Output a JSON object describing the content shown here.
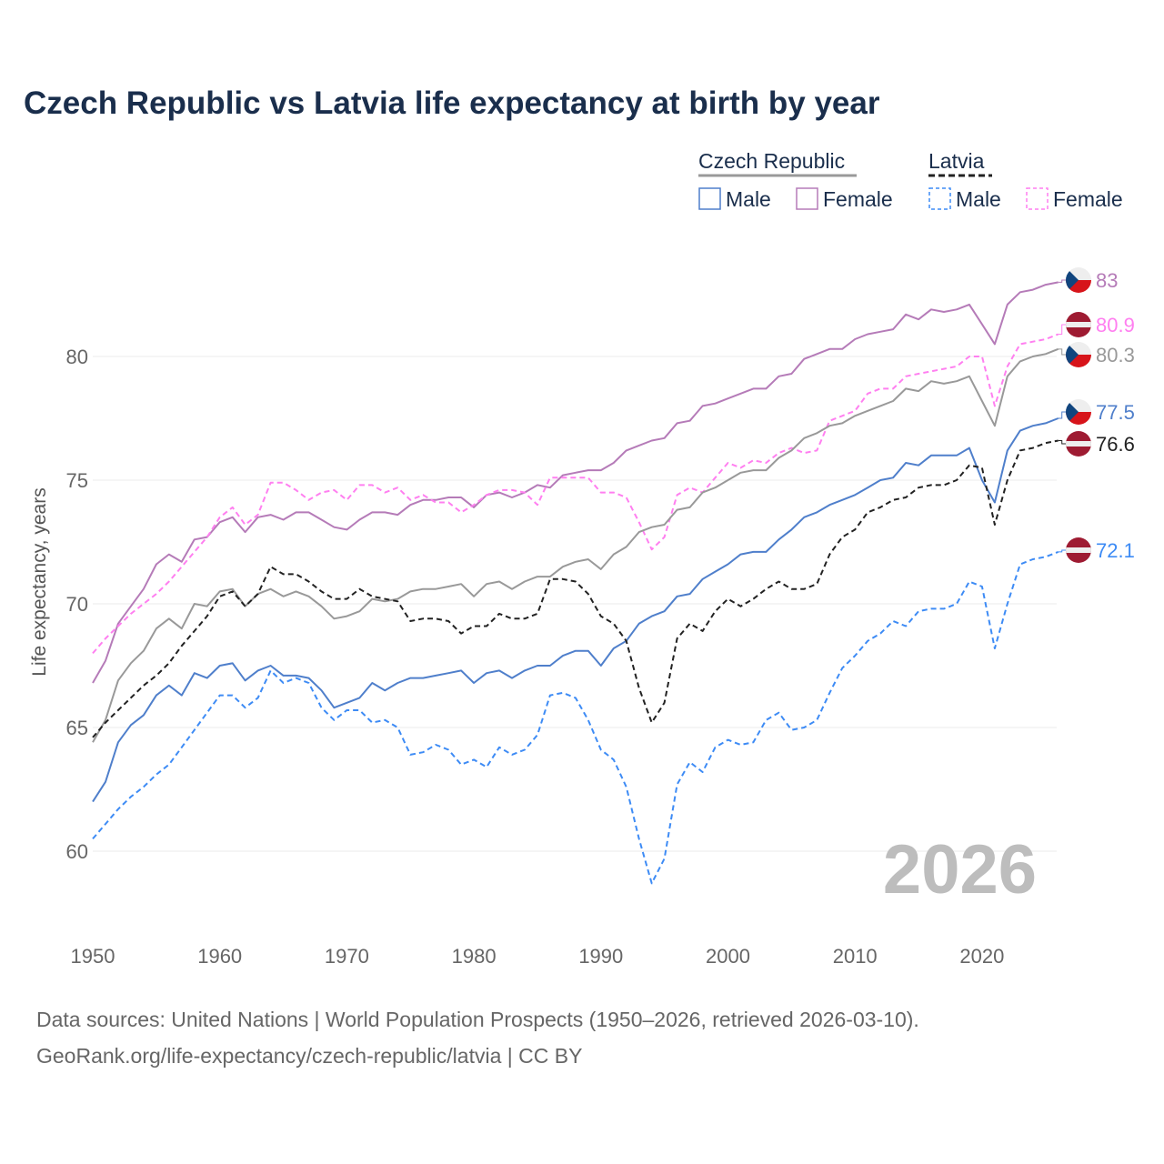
{
  "title": "Czech Republic vs Latvia life expectancy at birth by year",
  "watermark_year": "2026",
  "legend": {
    "groups": [
      {
        "label": "Czech Republic",
        "style": "solid",
        "underline_color": "#999999",
        "items": [
          {
            "label": "Male",
            "color": "#4f7fcb"
          },
          {
            "label": "Female",
            "color": "#b57bb8"
          }
        ]
      },
      {
        "label": "Latvia",
        "style": "dashed",
        "underline_color": "#222222",
        "items": [
          {
            "label": "Male",
            "color": "#3d8bf5"
          },
          {
            "label": "Female",
            "color": "#ff7ff0"
          }
        ]
      }
    ]
  },
  "footer": {
    "line1": "Data sources: United Nations | World Population Prospects (1950–2026, retrieved 2026-03-10).",
    "line2": "GeoRank.org/life-expectancy/czech-republic/latvia | CC BY"
  },
  "chart_data": {
    "type": "line",
    "title": "Czech Republic vs Latvia life expectancy at birth by year",
    "xlabel": "",
    "ylabel": "Life expectancy, years",
    "xlim": [
      1950,
      2026
    ],
    "ylim": [
      58,
      84
    ],
    "xticks": [
      1950,
      1960,
      1970,
      1980,
      1990,
      2000,
      2010,
      2020
    ],
    "yticks": [
      60,
      65,
      70,
      75,
      80
    ],
    "grid": true,
    "legend_position": "top-right",
    "x_start": 1950,
    "series": [
      {
        "name": "Czech Republic Female",
        "country": "cz",
        "color": "#b57bb8",
        "dashed": false,
        "end_label": "83",
        "values": [
          66.8,
          67.7,
          69.2,
          69.9,
          70.6,
          71.6,
          72.0,
          71.7,
          72.6,
          72.7,
          73.3,
          73.5,
          72.9,
          73.5,
          73.6,
          73.4,
          73.7,
          73.7,
          73.4,
          73.1,
          73.0,
          73.4,
          73.7,
          73.7,
          73.6,
          74.0,
          74.2,
          74.2,
          74.3,
          74.3,
          73.9,
          74.4,
          74.5,
          74.3,
          74.5,
          74.8,
          74.7,
          75.2,
          75.3,
          75.4,
          75.4,
          75.7,
          76.2,
          76.4,
          76.6,
          76.7,
          77.3,
          77.4,
          78.0,
          78.1,
          78.3,
          78.5,
          78.7,
          78.7,
          79.2,
          79.3,
          79.9,
          80.1,
          80.3,
          80.3,
          80.7,
          80.9,
          81.0,
          81.1,
          81.7,
          81.5,
          81.9,
          81.8,
          81.9,
          82.1,
          81.3,
          80.5,
          82.1,
          82.6,
          82.7,
          82.9,
          83.0
        ]
      },
      {
        "name": "Latvia Female",
        "country": "lv",
        "color": "#ff7ff0",
        "dashed": true,
        "end_label": "80.9",
        "values": [
          68.0,
          68.6,
          69.1,
          69.6,
          70.0,
          70.4,
          70.9,
          71.5,
          72.1,
          72.7,
          73.5,
          73.9,
          73.2,
          73.6,
          74.9,
          74.9,
          74.6,
          74.2,
          74.5,
          74.6,
          74.2,
          74.8,
          74.8,
          74.5,
          74.7,
          74.2,
          74.4,
          74.1,
          74.1,
          73.7,
          74.0,
          74.4,
          74.6,
          74.6,
          74.5,
          74.0,
          75.1,
          75.1,
          75.1,
          75.1,
          74.5,
          74.5,
          74.3,
          73.3,
          72.2,
          72.7,
          74.4,
          74.7,
          74.5,
          75.1,
          75.7,
          75.5,
          75.8,
          75.7,
          76.1,
          76.3,
          76.1,
          76.2,
          77.4,
          77.6,
          77.8,
          78.5,
          78.7,
          78.7,
          79.2,
          79.3,
          79.4,
          79.5,
          79.6,
          80.0,
          80.0,
          78.0,
          79.6,
          80.5,
          80.6,
          80.7,
          80.9
        ]
      },
      {
        "name": "Czech Republic",
        "country": "cz",
        "color": "#999999",
        "dashed": false,
        "end_label": "80.3",
        "values": [
          64.4,
          65.3,
          66.9,
          67.6,
          68.1,
          69.0,
          69.4,
          69.0,
          70.0,
          69.9,
          70.5,
          70.6,
          69.9,
          70.4,
          70.6,
          70.3,
          70.5,
          70.3,
          69.9,
          69.4,
          69.5,
          69.7,
          70.2,
          70.1,
          70.2,
          70.5,
          70.6,
          70.6,
          70.7,
          70.8,
          70.3,
          70.8,
          70.9,
          70.6,
          70.9,
          71.1,
          71.1,
          71.5,
          71.7,
          71.8,
          71.4,
          72.0,
          72.3,
          72.9,
          73.1,
          73.2,
          73.8,
          73.9,
          74.5,
          74.7,
          75.0,
          75.3,
          75.4,
          75.4,
          75.9,
          76.2,
          76.7,
          76.9,
          77.2,
          77.3,
          77.6,
          77.8,
          78.0,
          78.2,
          78.7,
          78.6,
          79.0,
          78.9,
          79.0,
          79.2,
          78.2,
          77.2,
          79.2,
          79.8,
          80.0,
          80.1,
          80.3
        ]
      },
      {
        "name": "Czech Republic Male",
        "country": "cz",
        "color": "#4f7fcb",
        "dashed": false,
        "end_label": "77.5",
        "values": [
          62.0,
          62.8,
          64.4,
          65.1,
          65.5,
          66.3,
          66.7,
          66.3,
          67.2,
          67.0,
          67.5,
          67.6,
          66.9,
          67.3,
          67.5,
          67.1,
          67.1,
          67.0,
          66.5,
          65.8,
          66.0,
          66.2,
          66.8,
          66.5,
          66.8,
          67.0,
          67.0,
          67.1,
          67.2,
          67.3,
          66.8,
          67.2,
          67.3,
          67.0,
          67.3,
          67.5,
          67.5,
          67.9,
          68.1,
          68.1,
          67.5,
          68.2,
          68.5,
          69.2,
          69.5,
          69.7,
          70.3,
          70.4,
          71.0,
          71.3,
          71.6,
          72.0,
          72.1,
          72.1,
          72.6,
          73.0,
          73.5,
          73.7,
          74.0,
          74.2,
          74.4,
          74.7,
          75.0,
          75.1,
          75.7,
          75.6,
          76.0,
          76.0,
          76.0,
          76.3,
          75.0,
          74.1,
          76.2,
          77.0,
          77.2,
          77.3,
          77.5
        ]
      },
      {
        "name": "Latvia",
        "country": "lv",
        "color": "#222222",
        "dashed": true,
        "end_label": "76.6",
        "values": [
          64.6,
          65.2,
          65.7,
          66.2,
          66.7,
          67.1,
          67.6,
          68.3,
          68.9,
          69.5,
          70.3,
          70.5,
          69.9,
          70.4,
          71.5,
          71.2,
          71.2,
          70.9,
          70.5,
          70.2,
          70.2,
          70.6,
          70.3,
          70.2,
          70.1,
          69.3,
          69.4,
          69.4,
          69.3,
          68.8,
          69.1,
          69.1,
          69.6,
          69.4,
          69.4,
          69.6,
          71.0,
          71.0,
          70.9,
          70.4,
          69.5,
          69.2,
          68.5,
          66.6,
          65.2,
          66.0,
          68.6,
          69.2,
          68.9,
          69.7,
          70.2,
          69.9,
          70.2,
          70.6,
          70.9,
          70.6,
          70.6,
          70.8,
          72.0,
          72.7,
          73.0,
          73.7,
          73.9,
          74.2,
          74.3,
          74.7,
          74.8,
          74.8,
          75.0,
          75.6,
          75.5,
          73.2,
          75.0,
          76.2,
          76.3,
          76.5,
          76.6
        ]
      },
      {
        "name": "Latvia Male",
        "country": "lv",
        "color": "#3d8bf5",
        "dashed": true,
        "end_label": "72.1",
        "values": [
          60.5,
          61.1,
          61.7,
          62.2,
          62.6,
          63.1,
          63.5,
          64.2,
          64.9,
          65.6,
          66.3,
          66.3,
          65.8,
          66.2,
          67.3,
          66.8,
          67.0,
          66.8,
          65.8,
          65.3,
          65.7,
          65.7,
          65.2,
          65.3,
          65.0,
          63.9,
          64.0,
          64.3,
          64.1,
          63.5,
          63.7,
          63.4,
          64.2,
          63.9,
          64.1,
          64.7,
          66.3,
          66.4,
          66.2,
          65.3,
          64.1,
          63.7,
          62.6,
          60.5,
          58.7,
          59.7,
          62.7,
          63.6,
          63.2,
          64.2,
          64.5,
          64.3,
          64.4,
          65.3,
          65.6,
          64.9,
          65.0,
          65.3,
          66.4,
          67.4,
          67.9,
          68.5,
          68.8,
          69.3,
          69.1,
          69.7,
          69.8,
          69.8,
          70.0,
          70.9,
          70.7,
          68.2,
          70.0,
          71.6,
          71.8,
          71.9,
          72.1
        ]
      }
    ]
  }
}
